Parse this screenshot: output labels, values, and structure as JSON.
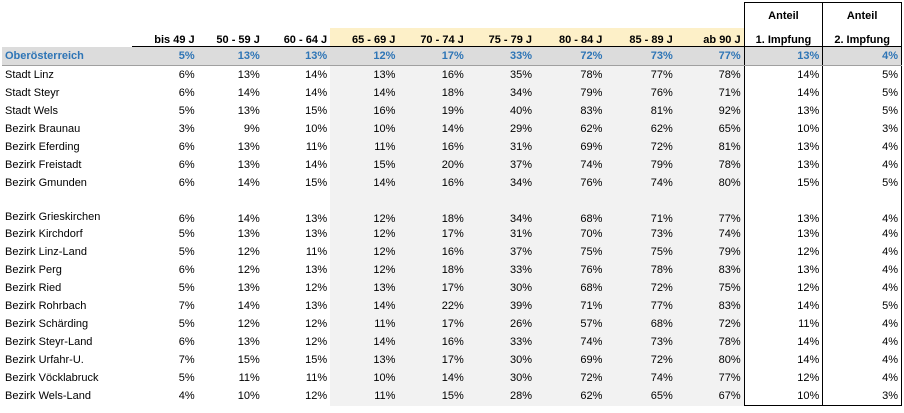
{
  "headers": {
    "age_groups": [
      "bis 49 J",
      "50 - 59 J",
      "60 - 64 J",
      "65 - 69 J",
      "70 - 74 J",
      "75 - 79 J",
      "80 - 84 J",
      "85 - 89 J",
      "ab 90 J"
    ],
    "anteil": "Anteil",
    "first_dose": "1. Impfung",
    "second_dose": "2. Impfung"
  },
  "summary": {
    "name": "Oberösterreich",
    "values": [
      "5%",
      "13%",
      "13%",
      "12%",
      "17%",
      "33%",
      "72%",
      "73%",
      "77%",
      "13%",
      "4%"
    ]
  },
  "rows": [
    {
      "name": "Stadt Linz",
      "values": [
        "6%",
        "13%",
        "14%",
        "13%",
        "16%",
        "35%",
        "78%",
        "77%",
        "78%",
        "14%",
        "5%"
      ]
    },
    {
      "name": "Stadt Steyr",
      "values": [
        "6%",
        "14%",
        "14%",
        "14%",
        "18%",
        "34%",
        "79%",
        "76%",
        "71%",
        "14%",
        "5%"
      ]
    },
    {
      "name": "Stadt Wels",
      "values": [
        "5%",
        "13%",
        "15%",
        "16%",
        "19%",
        "40%",
        "83%",
        "81%",
        "92%",
        "13%",
        "5%"
      ]
    },
    {
      "name": "Bezirk Braunau",
      "values": [
        "3%",
        "9%",
        "10%",
        "10%",
        "14%",
        "29%",
        "62%",
        "62%",
        "65%",
        "10%",
        "3%"
      ]
    },
    {
      "name": "Bezirk Eferding",
      "values": [
        "6%",
        "13%",
        "11%",
        "11%",
        "16%",
        "31%",
        "69%",
        "72%",
        "81%",
        "13%",
        "4%"
      ]
    },
    {
      "name": "Bezirk Freistadt",
      "values": [
        "6%",
        "13%",
        "14%",
        "15%",
        "20%",
        "37%",
        "74%",
        "79%",
        "78%",
        "13%",
        "4%"
      ]
    },
    {
      "name": "Bezirk Gmunden",
      "values": [
        "6%",
        "14%",
        "15%",
        "14%",
        "16%",
        "34%",
        "76%",
        "74%",
        "80%",
        "15%",
        "5%"
      ]
    },
    {
      "name": "Bezirk Grieskirchen",
      "values": [
        "6%",
        "14%",
        "13%",
        "12%",
        "18%",
        "34%",
        "68%",
        "71%",
        "77%",
        "13%",
        "4%"
      ]
    },
    {
      "name": "Bezirk Kirchdorf",
      "values": [
        "5%",
        "13%",
        "13%",
        "12%",
        "17%",
        "31%",
        "70%",
        "73%",
        "74%",
        "13%",
        "4%"
      ]
    },
    {
      "name": "Bezirk Linz-Land",
      "values": [
        "5%",
        "12%",
        "11%",
        "12%",
        "16%",
        "37%",
        "75%",
        "75%",
        "79%",
        "12%",
        "4%"
      ]
    },
    {
      "name": "Bezirk Perg",
      "values": [
        "6%",
        "12%",
        "13%",
        "12%",
        "18%",
        "33%",
        "76%",
        "78%",
        "83%",
        "13%",
        "4%"
      ]
    },
    {
      "name": "Bezirk Ried",
      "values": [
        "5%",
        "13%",
        "12%",
        "13%",
        "17%",
        "30%",
        "68%",
        "72%",
        "75%",
        "12%",
        "4%"
      ]
    },
    {
      "name": "Bezirk Rohrbach",
      "values": [
        "7%",
        "14%",
        "13%",
        "14%",
        "22%",
        "39%",
        "71%",
        "77%",
        "83%",
        "14%",
        "5%"
      ]
    },
    {
      "name": "Bezirk Schärding",
      "values": [
        "5%",
        "12%",
        "12%",
        "11%",
        "17%",
        "26%",
        "57%",
        "68%",
        "72%",
        "11%",
        "4%"
      ]
    },
    {
      "name": "Bezirk Steyr-Land",
      "values": [
        "6%",
        "13%",
        "12%",
        "14%",
        "16%",
        "33%",
        "74%",
        "73%",
        "78%",
        "14%",
        "4%"
      ]
    },
    {
      "name": "Bezirk Urfahr-U.",
      "values": [
        "7%",
        "15%",
        "15%",
        "13%",
        "17%",
        "30%",
        "69%",
        "72%",
        "80%",
        "14%",
        "4%"
      ]
    },
    {
      "name": "Bezirk Vöcklabruck",
      "values": [
        "5%",
        "11%",
        "11%",
        "10%",
        "14%",
        "30%",
        "72%",
        "74%",
        "77%",
        "12%",
        "4%"
      ]
    },
    {
      "name": "Bezirk Wels-Land",
      "values": [
        "4%",
        "10%",
        "12%",
        "11%",
        "15%",
        "28%",
        "62%",
        "65%",
        "67%",
        "10%",
        "3%"
      ]
    }
  ]
}
